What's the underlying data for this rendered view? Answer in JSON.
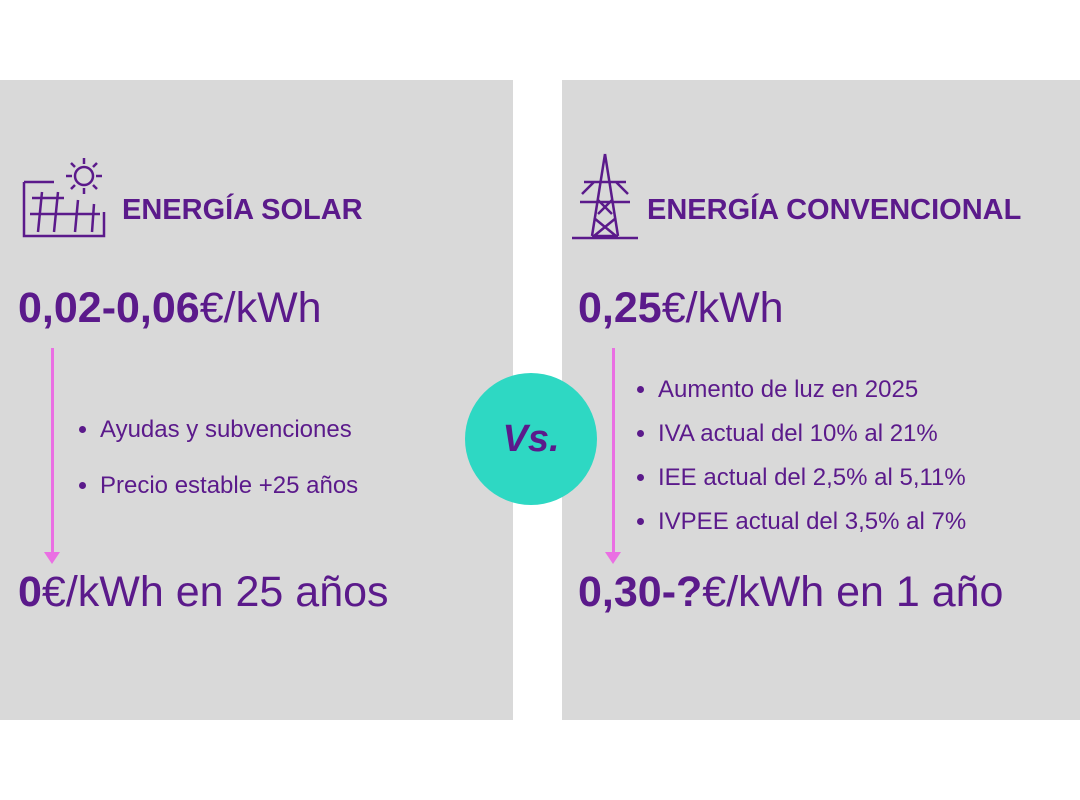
{
  "versus": "Vs.",
  "panels": [
    {
      "title": "ENERGÍA SOLAR",
      "price": {
        "value": "0,02-0,06",
        "unit": "€/kWh"
      },
      "bullets": [
        "Ayudas y subvenciones",
        "Precio estable +25 años"
      ],
      "result": {
        "value": "0",
        "unit": "€/kWh en 25 años"
      }
    },
    {
      "title": "ENERGÍA CONVENCIONAL",
      "price": {
        "value": "0,25",
        "unit": "€/kWh"
      },
      "bullets": [
        "Aumento de luz en 2025",
        "IVA actual del 10% al 21%",
        "IEE actual del 2,5% al 5,11%",
        "IVPEE actual del 3,5% al 7%"
      ],
      "result": {
        "value": "0,30-?",
        "unit": "€/kWh en 1 año"
      }
    }
  ]
}
